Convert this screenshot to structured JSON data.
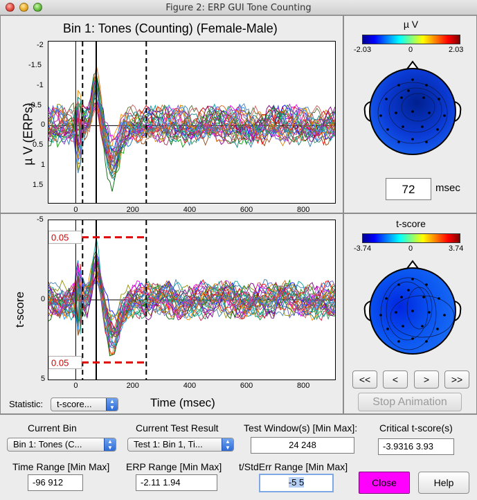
{
  "window": {
    "title": "Figure 2: ERP GUI Tone Counting"
  },
  "top_plot": {
    "title": "Bin 1: Tones (Counting) (Female-Male)",
    "ylabel": "µ V (ERPs)",
    "yticks": [
      "-2",
      "-1.5",
      "-1",
      "-0.5",
      "0",
      "0.5",
      "1",
      "1.5"
    ],
    "xticks": [
      "0",
      "200",
      "400",
      "600",
      "800"
    ]
  },
  "bottom_plot": {
    "ylabel": "t-score",
    "xlabel": "Time (msec)",
    "yticks": [
      "-5",
      "0",
      "5"
    ],
    "xticks": [
      "0",
      "200",
      "400",
      "600",
      "800"
    ],
    "threshold_upper": "0.05",
    "threshold_lower": "0.05"
  },
  "chart_data": [
    {
      "type": "line",
      "title": "Bin 1: Tones (Counting) (Female-Male)",
      "xlabel": "Time (msec)",
      "ylabel": "µ V (ERPs)",
      "xlim": [
        -96,
        912
      ],
      "ylim": [
        -2.11,
        1.94
      ],
      "y_reversed": true,
      "vlines": [
        0,
        24,
        72,
        248
      ],
      "series_count": 28
    },
    {
      "type": "line",
      "xlabel": "Time (msec)",
      "ylabel": "t-score",
      "xlim": [
        -96,
        912
      ],
      "ylim": [
        -5,
        5
      ],
      "y_reversed": true,
      "vlines": [
        0,
        24,
        72,
        248
      ],
      "threshold_lines": [
        -3.93,
        3.93
      ],
      "series_count": 28
    }
  ],
  "topo_top": {
    "title": "µ V",
    "min": "-2.03",
    "mid": "0",
    "max": "2.03",
    "time": "72",
    "time_unit": "msec"
  },
  "topo_bottom": {
    "title": "t-score",
    "min": "-3.74",
    "mid": "0",
    "max": "3.74"
  },
  "controls": {
    "statistic_label": "Statistic:",
    "statistic_value": "t-score...",
    "rewind": "<<",
    "prev": "<",
    "next": ">",
    "fast_forward": ">>",
    "stop_animation": "Stop Animation",
    "current_bin_label": "Current Bin",
    "current_bin_value": "Bin 1: Tones (C...",
    "current_test_label": "Current Test Result",
    "current_test_value": "Test 1: Bin 1, Ti...",
    "test_window_label": "Test Window(s) [Min Max]:",
    "test_window_value": "24  248",
    "critical_label": "Critical t-score(s)",
    "critical_value": "-3.9316     3.93",
    "time_range_label": "Time Range [Min Max]",
    "time_range_value": "-96  912",
    "erp_range_label": "ERP Range [Min Max]",
    "erp_range_value": "-2.11         1.94",
    "tstd_range_label": "t/StdErr Range [Min Max]",
    "tstd_range_value": "-5 5",
    "close": "Close",
    "help": "Help"
  }
}
